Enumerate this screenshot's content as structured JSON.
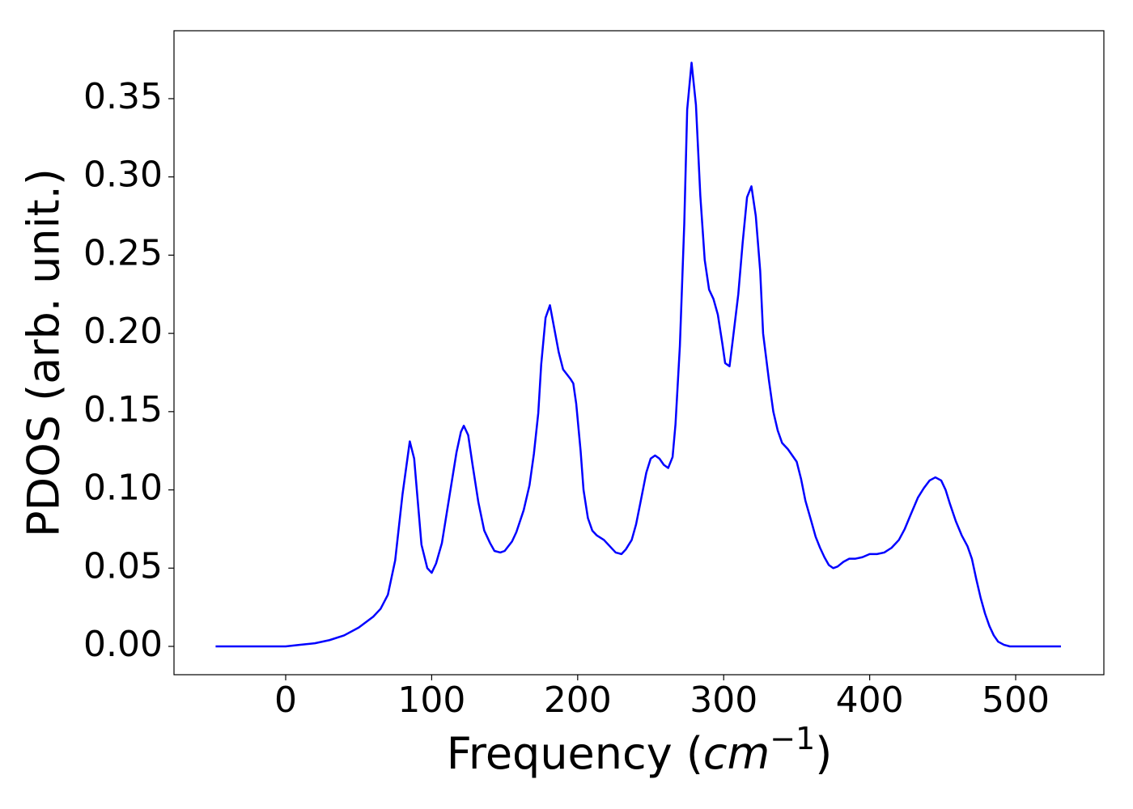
{
  "chart_data": {
    "type": "line",
    "x_label_parts": [
      "Frequency (",
      "cm",
      "−1",
      ")"
    ],
    "y_label": "PDOS (arb. unit.)",
    "x": [
      -48,
      -30,
      -10,
      0,
      10,
      20,
      30,
      40,
      50,
      60,
      65,
      70,
      75,
      80,
      85,
      88,
      93,
      97,
      100,
      103,
      107,
      112,
      117,
      120,
      122,
      125,
      128,
      132,
      136,
      140,
      143,
      147,
      150,
      155,
      158,
      163,
      167,
      170,
      173,
      175,
      178,
      181,
      183,
      187,
      190,
      195,
      197,
      199,
      202,
      204,
      207,
      210,
      213,
      218,
      222,
      226,
      230,
      233,
      237,
      240,
      243,
      247,
      250,
      253,
      256,
      259,
      262,
      265,
      267,
      270,
      273,
      275,
      278,
      281,
      284,
      287,
      290,
      293,
      296,
      299,
      301,
      304,
      306,
      310,
      313,
      316,
      319,
      322,
      325,
      327,
      331,
      334,
      337,
      340,
      344,
      347,
      350,
      353,
      356,
      360,
      363,
      366,
      369,
      372,
      375,
      378,
      382,
      386,
      390,
      395,
      400,
      405,
      410,
      415,
      420,
      424,
      428,
      433,
      437,
      441,
      445,
      449,
      452,
      455,
      459,
      463,
      467,
      470,
      473,
      476,
      479,
      482,
      485,
      488,
      492,
      496,
      510,
      531
    ],
    "series": [
      {
        "name": "PDOS",
        "color": "#0000ff",
        "values": [
          0,
          0,
          0,
          0,
          0.001,
          0.002,
          0.004,
          0.007,
          0.012,
          0.019,
          0.024,
          0.033,
          0.055,
          0.097,
          0.131,
          0.12,
          0.065,
          0.05,
          0.047,
          0.053,
          0.066,
          0.095,
          0.124,
          0.137,
          0.141,
          0.135,
          0.116,
          0.092,
          0.074,
          0.066,
          0.061,
          0.06,
          0.061,
          0.067,
          0.073,
          0.087,
          0.103,
          0.123,
          0.149,
          0.18,
          0.21,
          0.218,
          0.208,
          0.188,
          0.177,
          0.171,
          0.168,
          0.155,
          0.125,
          0.1,
          0.082,
          0.074,
          0.071,
          0.068,
          0.064,
          0.06,
          0.059,
          0.062,
          0.068,
          0.078,
          0.092,
          0.111,
          0.12,
          0.122,
          0.12,
          0.116,
          0.114,
          0.121,
          0.142,
          0.192,
          0.27,
          0.343,
          0.373,
          0.346,
          0.288,
          0.247,
          0.228,
          0.222,
          0.212,
          0.194,
          0.181,
          0.179,
          0.194,
          0.225,
          0.258,
          0.287,
          0.294,
          0.275,
          0.24,
          0.2,
          0.17,
          0.15,
          0.138,
          0.13,
          0.126,
          0.122,
          0.118,
          0.107,
          0.093,
          0.08,
          0.07,
          0.063,
          0.057,
          0.052,
          0.05,
          0.051,
          0.054,
          0.056,
          0.056,
          0.057,
          0.059,
          0.059,
          0.06,
          0.063,
          0.068,
          0.075,
          0.084,
          0.095,
          0.101,
          0.106,
          0.108,
          0.106,
          0.1,
          0.091,
          0.08,
          0.071,
          0.064,
          0.056,
          0.043,
          0.031,
          0.021,
          0.013,
          0.007,
          0.003,
          0.001,
          0,
          0,
          0
        ]
      }
    ],
    "xlim": [
      -76.5,
      560.4
    ],
    "ylim": [
      -0.0181,
      0.3934
    ],
    "xticks": [
      0,
      100,
      200,
      300,
      400,
      500
    ],
    "yticks": [
      {
        "value": 0,
        "label": "0.00"
      },
      0.05,
      {
        "value": 0.1,
        "label": "0.10"
      },
      0.15,
      {
        "value": 0.2,
        "label": "0.20"
      },
      0.25,
      {
        "value": 0.3,
        "label": "0.30"
      },
      0.35
    ],
    "grid": false
  }
}
